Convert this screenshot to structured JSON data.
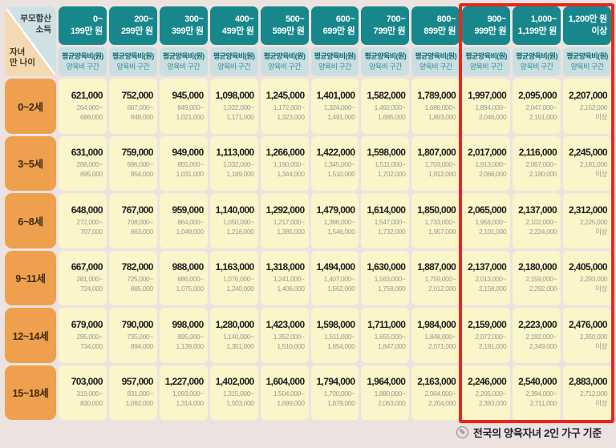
{
  "colors": {
    "page_background": "#ece3e0",
    "header_teal": "#17878c",
    "subheader_blue": "#cbdfe1",
    "age_orange": "#efa04e",
    "cell_yellow": "#fbf5ca",
    "highlight_red": "#e6281c"
  },
  "footer": {
    "icon": "pencil-memo-icon",
    "text": "전국의 양육자녀 2인 가구 기준"
  },
  "chart_data": {
    "type": "table",
    "title": "자녀 나이 및 부모합산 소득 구간별 평균양육비",
    "corner": {
      "income": "부모합산\n소득",
      "age": "자녀\n만 나이"
    },
    "column_subheader": {
      "line1": "평균양육비(원)",
      "line2": "양육비 구간"
    },
    "income_brackets": [
      "0~\n199만 원",
      "200~\n299만 원",
      "300~\n399만 원",
      "400~\n499만 원",
      "500~\n599만 원",
      "600~\n699만 원",
      "700~\n799만 원",
      "800~\n899만 원",
      "900~\n999만 원",
      "1,000~\n1,199만 원",
      "1,200만 원\n이상"
    ],
    "highlighted_brackets": [
      "900~999만 원",
      "1,000~1,199만 원",
      "1,200만 원 이상"
    ],
    "rows": [
      {
        "age": "0~2세",
        "cells": [
          {
            "avg": "621,000",
            "range": "264,000~\n686,000"
          },
          {
            "avg": "752,000",
            "range": "687,000~\n848,000"
          },
          {
            "avg": "945,000",
            "range": "849,000~\n1,021,000"
          },
          {
            "avg": "1,098,000",
            "range": "1,022,000~\n1,171,000"
          },
          {
            "avg": "1,245,000",
            "range": "1,172,000~\n1,323,000"
          },
          {
            "avg": "1,401,000",
            "range": "1,324,000~\n1,491,000"
          },
          {
            "avg": "1,582,000",
            "range": "1,492,000~\n1,685,000"
          },
          {
            "avg": "1,789,000",
            "range": "1,686,000~\n1,893,000"
          },
          {
            "avg": "1,997,000",
            "range": "1,894,000~\n2,046,000"
          },
          {
            "avg": "2,095,000",
            "range": "2,047,000~\n2,151,000"
          },
          {
            "avg": "2,207,000",
            "range": "2,152,000\n이상"
          }
        ]
      },
      {
        "age": "3~5세",
        "cells": [
          {
            "avg": "631,000",
            "range": "268,000~\n695,000"
          },
          {
            "avg": "759,000",
            "range": "696,000~\n854,000"
          },
          {
            "avg": "949,000",
            "range": "855,000~\n1,031,000"
          },
          {
            "avg": "1,113,000",
            "range": "1,032,000~\n1,189,000"
          },
          {
            "avg": "1,266,000",
            "range": "1,190,000~\n1,344,000"
          },
          {
            "avg": "1,422,000",
            "range": "1,345,000~\n1,510,000"
          },
          {
            "avg": "1,598,000",
            "range": "1,511,000~\n1,702,000"
          },
          {
            "avg": "1,807,000",
            "range": "1,703,000~\n1,912,000"
          },
          {
            "avg": "2,017,000",
            "range": "1,913,000~\n2,066,000"
          },
          {
            "avg": "2,116,000",
            "range": "2,067,000~\n2,180,000"
          },
          {
            "avg": "2,245,000",
            "range": "2,181,000\n이상"
          }
        ]
      },
      {
        "age": "6~8세",
        "cells": [
          {
            "avg": "648,000",
            "range": "272,000~\n707,000"
          },
          {
            "avg": "767,000",
            "range": "708,000~\n863,000"
          },
          {
            "avg": "959,000",
            "range": "864,000~\n1,049,000"
          },
          {
            "avg": "1,140,000",
            "range": "1,050,000~\n1,216,000"
          },
          {
            "avg": "1,292,000",
            "range": "1,217,000~\n1,385,000"
          },
          {
            "avg": "1,479,000",
            "range": "1,386,000~\n1,546,000"
          },
          {
            "avg": "1,614,000",
            "range": "1,547,000~\n1,732,000"
          },
          {
            "avg": "1,850,000",
            "range": "1,733,000~\n1,957,000"
          },
          {
            "avg": "2,065,000",
            "range": "1,958,000~\n2,101,000"
          },
          {
            "avg": "2,137,000",
            "range": "2,102,000~\n2,224,000"
          },
          {
            "avg": "2,312,000",
            "range": "2,225,000\n이상"
          }
        ]
      },
      {
        "age": "9~11세",
        "cells": [
          {
            "avg": "667,000",
            "range": "281,000~\n724,000"
          },
          {
            "avg": "782,000",
            "range": "725,000~\n885,000"
          },
          {
            "avg": "988,000",
            "range": "886,000~\n1,075,000"
          },
          {
            "avg": "1,163,000",
            "range": "1,076,000~\n1,240,000"
          },
          {
            "avg": "1,318,000",
            "range": "1,241,000~\n1,406,000"
          },
          {
            "avg": "1,494,000",
            "range": "1,407,000~\n1,562,000"
          },
          {
            "avg": "1,630,000",
            "range": "1,563,000~\n1,758,000"
          },
          {
            "avg": "1,887,000",
            "range": "1,759,000~\n2,012,000"
          },
          {
            "avg": "2,137,000",
            "range": "2,013,000~\n2,158,000"
          },
          {
            "avg": "2,180,000",
            "range": "2,159,000~\n2,292,000"
          },
          {
            "avg": "2,405,000",
            "range": "2,293,000\n이상"
          }
        ]
      },
      {
        "age": "12~14세",
        "cells": [
          {
            "avg": "679,000",
            "range": "295,000~\n734,000"
          },
          {
            "avg": "790,000",
            "range": "735,000~\n894,000"
          },
          {
            "avg": "998,000",
            "range": "895,000~\n1,139,000"
          },
          {
            "avg": "1,280,000",
            "range": "1,140,000~\n1,351,000"
          },
          {
            "avg": "1,423,000",
            "range": "1,352,000~\n1,510,000"
          },
          {
            "avg": "1,598,000",
            "range": "1,511,000~\n1,654,000"
          },
          {
            "avg": "1,711,000",
            "range": "1,655,000~\n1,847,000"
          },
          {
            "avg": "1,984,000",
            "range": "1,848,000~\n2,071,000"
          },
          {
            "avg": "2,159,000",
            "range": "2,072,000~\n2,191,000"
          },
          {
            "avg": "2,223,000",
            "range": "2,192,000~\n2,349,000"
          },
          {
            "avg": "2,476,000",
            "range": "2,350,000\n이상"
          }
        ]
      },
      {
        "age": "15~18세",
        "cells": [
          {
            "avg": "703,000",
            "range": "319,000~\n830,000"
          },
          {
            "avg": "957,000",
            "range": "831,000~\n1,092,000"
          },
          {
            "avg": "1,227,000",
            "range": "1,093,000~\n1,314,000"
          },
          {
            "avg": "1,402,000",
            "range": "1,315,000~\n1,503,000"
          },
          {
            "avg": "1,604,000",
            "range": "1,504,000~\n1,699,000"
          },
          {
            "avg": "1,794,000",
            "range": "1,700,000~\n1,879,000"
          },
          {
            "avg": "1,964,000",
            "range": "1,880,000~\n2,063,000"
          },
          {
            "avg": "2,163,000",
            "range": "2,064,000~\n2,204,000"
          },
          {
            "avg": "2,246,000",
            "range": "2,205,000~\n2,393,000"
          },
          {
            "avg": "2,540,000",
            "range": "2,394,000~\n2,711,000"
          },
          {
            "avg": "2,883,000",
            "range": "2,712,000\n이상"
          }
        ]
      }
    ]
  }
}
